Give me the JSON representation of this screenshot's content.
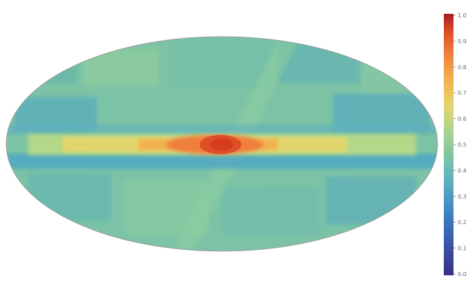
{
  "chart_data": {
    "type": "heatmap",
    "projection": "mollweide",
    "title": "",
    "xlabel": "",
    "ylabel": "",
    "colorbar": {
      "colormap": "Spectral_r",
      "range": [
        0.0,
        1.0
      ],
      "ticks": [
        {
          "value": 1.0,
          "label": "1.0"
        },
        {
          "value": 0.9,
          "label": "0.9"
        },
        {
          "value": 0.8,
          "label": "0.8"
        },
        {
          "value": 0.7,
          "label": "0.7"
        },
        {
          "value": 0.6,
          "label": "0.6"
        },
        {
          "value": 0.5,
          "label": "0.5"
        },
        {
          "value": 0.4,
          "label": "0.4"
        },
        {
          "value": 0.3,
          "label": "0.3"
        },
        {
          "value": 0.2,
          "label": "0.2"
        },
        {
          "value": 0.1,
          "label": "0.1"
        },
        {
          "value": 0.0,
          "label": "0.0"
        }
      ]
    },
    "colors": {
      "background_level": "#7cc3a6",
      "low": "#3b6fb6",
      "mid": "#e6d56c",
      "high": "#e85c2f",
      "peak": "#d73c1c",
      "outline": "#9a9a9a"
    },
    "features": {
      "background_level": 0.35,
      "galactic_plane_level": 0.65,
      "galactic_center_level": 0.9,
      "band_below_plane_level": 0.25
    }
  }
}
